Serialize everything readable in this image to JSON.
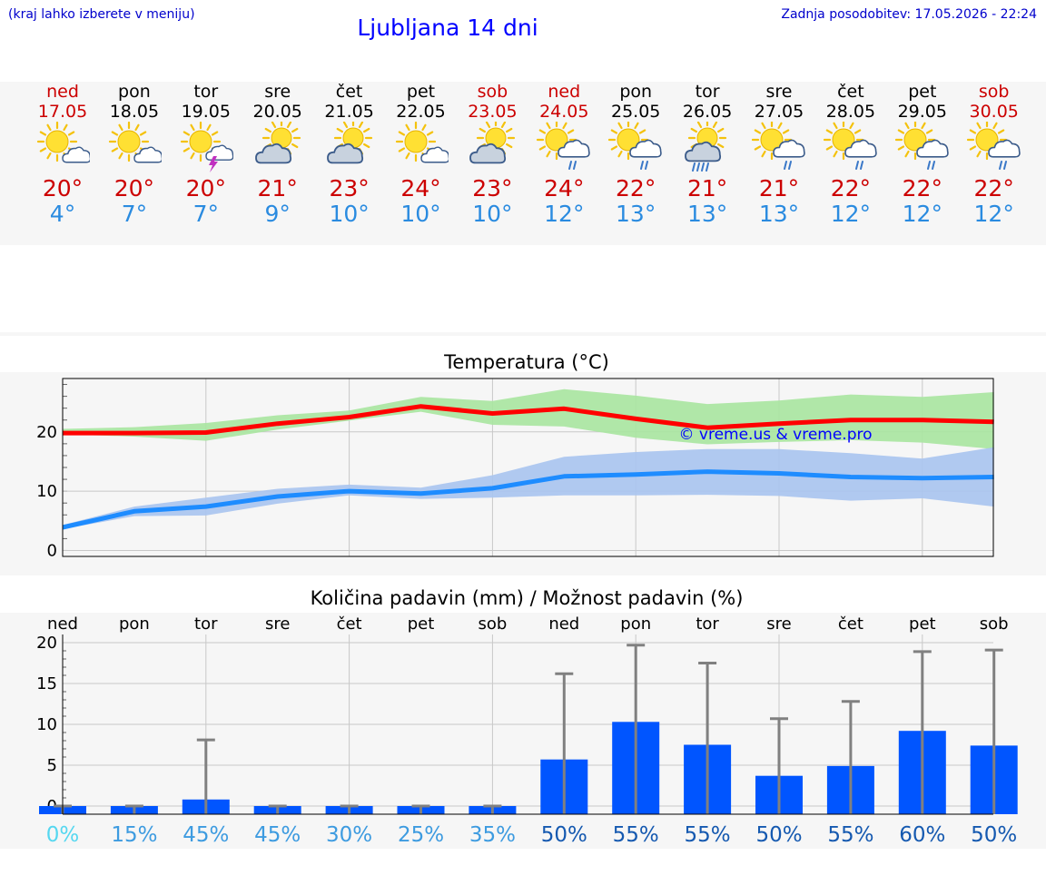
{
  "header": {
    "hint": "(kraj lahko izberete v meniju)",
    "title": "Ljubljana 14 dni",
    "updated": "Zadnja posodobitev: 17.05.2026 - 22:24"
  },
  "days": [
    {
      "name": "ned",
      "date": "17.05",
      "weekend": true,
      "icon": "sun-cloud-icon",
      "tmax": "20°",
      "tmin": "4°"
    },
    {
      "name": "pon",
      "date": "18.05",
      "weekend": false,
      "icon": "sun-cloud-icon",
      "tmax": "20°",
      "tmin": "7°"
    },
    {
      "name": "tor",
      "date": "19.05",
      "weekend": false,
      "icon": "sun-thunder-icon",
      "tmax": "20°",
      "tmin": "7°"
    },
    {
      "name": "sre",
      "date": "20.05",
      "weekend": false,
      "icon": "cloud-sun-icon",
      "tmax": "21°",
      "tmin": "9°"
    },
    {
      "name": "čet",
      "date": "21.05",
      "weekend": false,
      "icon": "cloud-sun-icon",
      "tmax": "23°",
      "tmin": "10°"
    },
    {
      "name": "pet",
      "date": "22.05",
      "weekend": false,
      "icon": "sun-cloud-icon",
      "tmax": "24°",
      "tmin": "10°"
    },
    {
      "name": "sob",
      "date": "23.05",
      "weekend": true,
      "icon": "cloud-sun-icon",
      "tmax": "23°",
      "tmin": "10°"
    },
    {
      "name": "ned",
      "date": "24.05",
      "weekend": true,
      "icon": "sun-rain-icon",
      "tmax": "24°",
      "tmin": "12°"
    },
    {
      "name": "pon",
      "date": "25.05",
      "weekend": false,
      "icon": "sun-rain-icon",
      "tmax": "22°",
      "tmin": "13°"
    },
    {
      "name": "tor",
      "date": "26.05",
      "weekend": false,
      "icon": "sun-heavy-rain-icon",
      "tmax": "21°",
      "tmin": "13°"
    },
    {
      "name": "sre",
      "date": "27.05",
      "weekend": false,
      "icon": "sun-rain-icon",
      "tmax": "21°",
      "tmin": "13°"
    },
    {
      "name": "čet",
      "date": "28.05",
      "weekend": false,
      "icon": "sun-rain-icon",
      "tmax": "22°",
      "tmin": "12°"
    },
    {
      "name": "pet",
      "date": "29.05",
      "weekend": false,
      "icon": "sun-rain-icon",
      "tmax": "22°",
      "tmin": "12°"
    },
    {
      "name": "sob",
      "date": "30.05",
      "weekend": true,
      "icon": "sun-rain-icon",
      "tmax": "22°",
      "tmin": "12°"
    }
  ],
  "colors": {
    "max_line": "#ff0000",
    "max_band": "#a8e6a0",
    "min_line": "#1e8cff",
    "min_band": "#a8c4f0",
    "bar": "#0055ff",
    "whisker": "#808080"
  },
  "chart_data": [
    {
      "type": "line",
      "title": "Temperatura (°C)",
      "watermark": "© vreme.us & vreme.pro",
      "x": [
        "17.05",
        "18.05",
        "19.05",
        "20.05",
        "21.05",
        "22.05",
        "23.05",
        "24.05",
        "25.05",
        "26.05",
        "27.05",
        "28.05",
        "29.05",
        "30.05"
      ],
      "ylim": [
        -1,
        29
      ],
      "yticks": [
        0,
        10,
        20
      ],
      "grid": true,
      "series": [
        {
          "values": [
            19.8,
            19.8,
            19.9,
            21.4,
            22.5,
            24.3,
            23.1,
            23.9,
            22.2,
            20.7,
            21.4,
            22.0,
            22.0,
            21.7
          ],
          "band_low": [
            19.6,
            19.2,
            18.5,
            20.4,
            21.9,
            23.4,
            21.2,
            20.9,
            19.0,
            17.9,
            18.3,
            18.6,
            18.2,
            17.1
          ],
          "band_high": [
            20.5,
            20.8,
            21.5,
            22.8,
            23.6,
            25.9,
            25.2,
            27.2,
            26.1,
            24.7,
            25.3,
            26.3,
            25.9,
            26.7
          ]
        },
        {
          "values": [
            3.9,
            6.6,
            7.4,
            9.1,
            10.0,
            9.6,
            10.5,
            12.5,
            12.8,
            13.3,
            13.0,
            12.4,
            12.2,
            12.4
          ],
          "band_low": [
            3.6,
            5.8,
            5.9,
            7.9,
            9.3,
            8.7,
            8.9,
            9.3,
            9.3,
            9.4,
            9.2,
            8.4,
            8.8,
            7.4
          ],
          "band_high": [
            4.3,
            7.4,
            8.9,
            10.4,
            11.1,
            10.6,
            12.7,
            15.8,
            16.6,
            17.1,
            17.1,
            16.4,
            15.5,
            17.4
          ]
        }
      ]
    },
    {
      "type": "bar",
      "title": "Količina padavin (mm) / Možnost padavin (%)",
      "categories": [
        "ned",
        "pon",
        "tor",
        "sre",
        "čet",
        "pet",
        "sob",
        "ned",
        "pon",
        "tor",
        "sre",
        "čet",
        "pet",
        "sob"
      ],
      "values": [
        0,
        0,
        0.8,
        0,
        0,
        0,
        0,
        5.7,
        10.3,
        7.5,
        3.7,
        4.9,
        9.2,
        7.4
      ],
      "error_high": [
        0,
        0,
        8.1,
        0,
        0,
        0,
        0,
        16.2,
        19.7,
        17.5,
        10.7,
        12.8,
        18.9,
        19.1
      ],
      "probability": [
        "0%",
        "15%",
        "45%",
        "45%",
        "30%",
        "25%",
        "35%",
        "50%",
        "55%",
        "55%",
        "50%",
        "55%",
        "60%",
        "50%"
      ],
      "probability_values": [
        0,
        15,
        45,
        45,
        30,
        25,
        35,
        50,
        55,
        55,
        50,
        55,
        60,
        50
      ],
      "ylim": [
        -1,
        21
      ],
      "yticks": [
        0,
        5,
        10,
        15,
        20
      ],
      "grid": true
    }
  ]
}
